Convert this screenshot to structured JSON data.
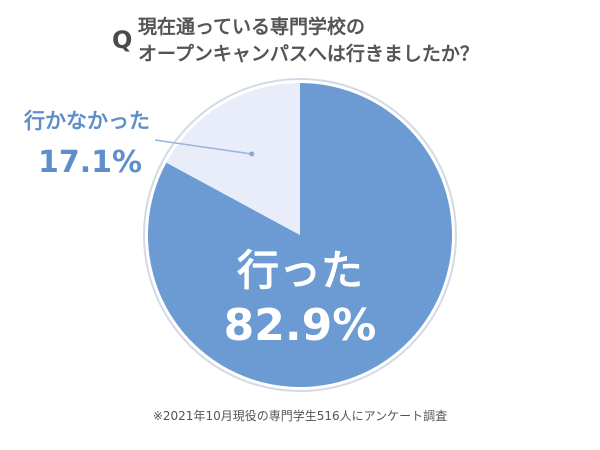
{
  "question": {
    "mark": "Q",
    "line1": "現在通っている専門学校の",
    "line2": "オープンキャンパスへは行きましたか？"
  },
  "footnote": "※2021年10月現役の専門学生516人にアンケート調査",
  "colors": {
    "went": "#6b9bd2",
    "not_went": "#e9edf9",
    "outline": "#d3d9e6",
    "label_blue": "#5f8fcb",
    "label_white": "#ffffff"
  },
  "chart_data": {
    "type": "pie",
    "slices": [
      {
        "label": "行った",
        "value": 82.9,
        "display": "82.9%"
      },
      {
        "label": "行かなかった",
        "value": 17.1,
        "display": "17.1%"
      }
    ]
  }
}
